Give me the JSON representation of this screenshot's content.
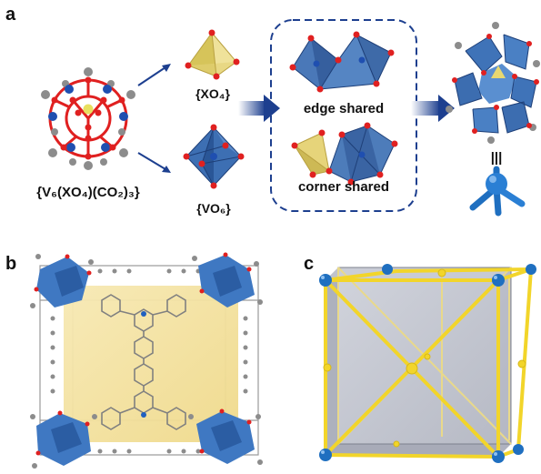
{
  "panels": {
    "a": {
      "label": "a",
      "cluster_formula": "{V₆(XO₄)(CO₂)₃}",
      "tetrahedron_label": "{XO₄}",
      "octahedron_label": "{VO₆}",
      "edge_shared_label": "edge shared",
      "corner_shared_label": "corner shared",
      "equivalence_symbol": "|||"
    },
    "b": {
      "label": "b"
    },
    "c": {
      "label": "c"
    }
  },
  "colors": {
    "vanadium_blue": "#2f7cc8",
    "oxygen_red": "#e02020",
    "tetra_yellow": "#e8d870",
    "carbon_gray": "#8c8c8c",
    "arrow_navy": "#1d3f8f",
    "cage_yellow": "#f5e3a0",
    "cube_gray": "#b8bcc8",
    "edge_yellow": "#f2d52a",
    "node_blue": "#1f6fc0"
  }
}
